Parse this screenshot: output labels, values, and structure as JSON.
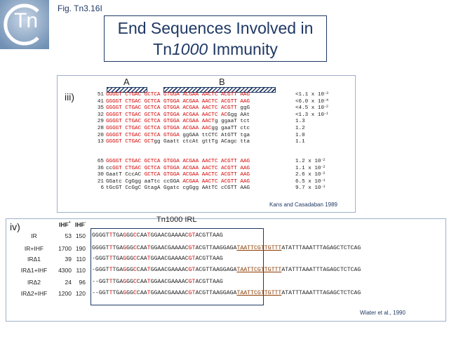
{
  "header": {
    "logo_text": "Tn",
    "fig_label": "Fig. Tn3.16I"
  },
  "title": {
    "line1": "End Sequences Involved in",
    "line2_prefix": "Tn",
    "line2_italic": "1000",
    "line2_suffix": " Immunity"
  },
  "panel_iii": {
    "label": "iii)",
    "region_a": "A",
    "region_b": "B",
    "citation": "Kans and Casadaban 1989",
    "rows": [
      {
        "num": "51",
        "segs": [
          [
            "r",
            "GGGGT CTGAC GCTCA GTGGA ACGAA AACTC ACGTT AAG"
          ]
        ],
        "immunity": "<1.1 x 10",
        "exp": "-3"
      },
      {
        "num": "41",
        "segs": [
          [
            "r",
            "GGGGT CTGAC GCTCA GTGGA ACGAA AACTC ACGTT AAG"
          ]
        ],
        "immunity": "<6.0 x 10",
        "exp": "-4"
      },
      {
        "num": "35",
        "segs": [
          [
            "r",
            "GGGGT CTGAC GCTCA GTGGA ACGAA AACTC ACGTT "
          ],
          [
            "k",
            "ggG"
          ]
        ],
        "immunity": "<4.5 x 10",
        "exp": "-2"
      },
      {
        "num": "32",
        "segs": [
          [
            "r",
            "GGGGT CTGAC GCTCA GTGGA ACGAA AACTC AC"
          ],
          [
            "k",
            "Ggg AAt"
          ]
        ],
        "immunity": "<1.3 x 10",
        "exp": "-1"
      },
      {
        "num": "29",
        "segs": [
          [
            "r",
            "GGGGT CTGAC GCTCA GTGGA ACGAA AACT"
          ],
          [
            "k",
            "g ggaaT tct"
          ]
        ],
        "immunity": "1.3",
        "exp": ""
      },
      {
        "num": "28",
        "segs": [
          [
            "r",
            "GGGGT CTGAC GCTCA GTGGA ACGAA AAC"
          ],
          [
            "k",
            "gg gaaTT ctc"
          ]
        ],
        "immunity": "1.2",
        "exp": ""
      },
      {
        "num": "20",
        "segs": [
          [
            "r",
            "GGGGT CTGAC GCTCA GTGGA "
          ],
          [
            "k",
            "ggGAA ttCTC AtGTT tga"
          ]
        ],
        "immunity": "1.0",
        "exp": ""
      },
      {
        "num": "13",
        "segs": [
          [
            "r",
            "GGGGT CTGAC GCT"
          ],
          [
            "k",
            "gg Gaatt ctcAt gttTg ACagc tta"
          ]
        ],
        "immunity": "1.1",
        "exp": ""
      },
      {
        "num": "65",
        "segs": [
          [
            "r",
            "GGGGT CTGAC GCTCA GTGGA ACGAA AACTC ACGTT AAG"
          ]
        ],
        "immunity": "1.2 x 10",
        "exp": "-2"
      },
      {
        "num": "36",
        "segs": [
          [
            "k",
            "cc"
          ],
          [
            "r",
            "GGT CTGAC GCTCA GTGGA ACGAA AACTC ACGTT AAG"
          ]
        ],
        "immunity": "1.1 x 10",
        "exp": "-2"
      },
      {
        "num": "30",
        "segs": [
          [
            "k",
            "GaatT CccAC "
          ],
          [
            "r",
            "GCTCA GTGGA ACGAA AACTC ACGTT AAG"
          ]
        ],
        "immunity": "2.6 x 10",
        "exp": "-2"
      },
      {
        "num": "21",
        "segs": [
          [
            "k",
            "GGatc CgGgg aaTtc ccGGA "
          ],
          [
            "r",
            "ACGAA AACTC ACGTT AAG"
          ]
        ],
        "immunity": "6.5 x 10",
        "exp": "-1"
      },
      {
        "num": "6",
        "segs": [
          [
            "k",
            "tGcGT CcGgC GtagA Ggatc cgGgg AAtTC cCGTT AAG"
          ]
        ],
        "immunity": "9.7 x 10",
        "exp": "-1"
      }
    ]
  },
  "panel_iv": {
    "label": "iv)",
    "irl_title": "Tn1000 IRL",
    "col_plus": "IHF",
    "col_plus_sup": "+",
    "col_minus": "IHF",
    "col_minus_sup": "-",
    "citation": "Wiater et al., 1990",
    "rows": [
      {
        "name": "IR",
        "plus": "53",
        "minus": "150",
        "segs": [
          [
            "k",
            "GGGGT"
          ],
          [
            "r",
            "T"
          ],
          [
            "k",
            "TGA"
          ],
          [
            "r",
            "G"
          ],
          [
            "k",
            "GG"
          ],
          [
            "r",
            "C"
          ],
          [
            "k",
            "CAA"
          ],
          [
            "r",
            "T"
          ],
          [
            "k",
            "GGAACGAAAAC"
          ],
          [
            "r",
            "GT"
          ],
          [
            "k",
            "ACGTTAAG"
          ]
        ]
      },
      {
        "name": "IR+IHF",
        "plus": "1700",
        "minus": "190",
        "segs": [
          [
            "k",
            "GGGGT"
          ],
          [
            "r",
            "T"
          ],
          [
            "k",
            "TGA"
          ],
          [
            "r",
            "G"
          ],
          [
            "k",
            "GG"
          ],
          [
            "r",
            "C"
          ],
          [
            "k",
            "CAA"
          ],
          [
            "r",
            "T"
          ],
          [
            "k",
            "GGAACGAAAAC"
          ],
          [
            "r",
            "GT"
          ],
          [
            "k",
            "ACGTTAAGGAGA"
          ],
          [
            "u",
            "TAATTCGTTGTTT"
          ],
          [
            "k",
            "ATATTTAAATTTAGAGCTCTCAG"
          ]
        ]
      },
      {
        "name": "IRΔ1",
        "plus": "39",
        "minus": "110",
        "segs": [
          [
            "k",
            "-GGGT"
          ],
          [
            "r",
            "T"
          ],
          [
            "k",
            "TGA"
          ],
          [
            "r",
            "G"
          ],
          [
            "k",
            "GG"
          ],
          [
            "r",
            "C"
          ],
          [
            "k",
            "CAA"
          ],
          [
            "r",
            "T"
          ],
          [
            "k",
            "GGAACGAAAAC"
          ],
          [
            "r",
            "GT"
          ],
          [
            "k",
            "ACGTTAAG"
          ]
        ]
      },
      {
        "name": "IRΔ1+IHF",
        "plus": "4300",
        "minus": "110",
        "segs": [
          [
            "k",
            "-GGGT"
          ],
          [
            "r",
            "T"
          ],
          [
            "k",
            "TGA"
          ],
          [
            "r",
            "G"
          ],
          [
            "k",
            "GG"
          ],
          [
            "r",
            "C"
          ],
          [
            "k",
            "CAA"
          ],
          [
            "r",
            "T"
          ],
          [
            "k",
            "GGAACGAAAAC"
          ],
          [
            "r",
            "GT"
          ],
          [
            "k",
            "ACGTTAAGGAGA"
          ],
          [
            "u",
            "TAATTCGTTGTTT"
          ],
          [
            "k",
            "ATATTTAAATTTAGAGCTCTCAG"
          ]
        ]
      },
      {
        "name": "IRΔ2",
        "plus": "24",
        "minus": "96",
        "segs": [
          [
            "k",
            "--GGT"
          ],
          [
            "r",
            "T"
          ],
          [
            "k",
            "TGA"
          ],
          [
            "r",
            "G"
          ],
          [
            "k",
            "GG"
          ],
          [
            "r",
            "C"
          ],
          [
            "k",
            "CAA"
          ],
          [
            "r",
            "T"
          ],
          [
            "k",
            "GGAACGAAAAC"
          ],
          [
            "r",
            "GT"
          ],
          [
            "k",
            "ACGTTAAG"
          ]
        ]
      },
      {
        "name": "IRΔ2+IHF",
        "plus": "1200",
        "minus": "120",
        "segs": [
          [
            "k",
            "--GGT"
          ],
          [
            "r",
            "T"
          ],
          [
            "k",
            "TGA"
          ],
          [
            "r",
            "G"
          ],
          [
            "k",
            "GG"
          ],
          [
            "r",
            "C"
          ],
          [
            "k",
            "CAA"
          ],
          [
            "r",
            "T"
          ],
          [
            "k",
            "GGAACGAAAAC"
          ],
          [
            "r",
            "GT"
          ],
          [
            "k",
            "ACGTTAAGGAGA"
          ],
          [
            "u",
            "TAATTCGTTGTTT"
          ],
          [
            "k",
            "ATATTTAAATTTAGAGCTCTCAG"
          ]
        ]
      }
    ]
  },
  "colors": {
    "accent": "#1f3864",
    "conserved": "#d40000",
    "ihf_site": "#8b3a00"
  }
}
